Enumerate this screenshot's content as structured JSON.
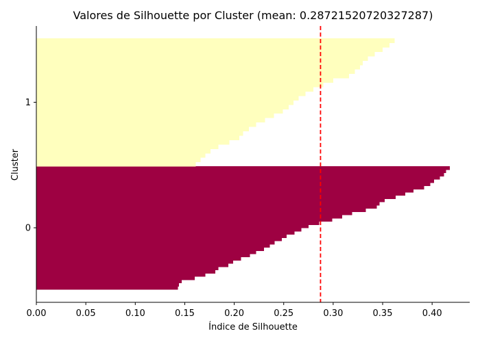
{
  "chart_data": {
    "type": "bar",
    "orientation": "horizontal",
    "title": "Valores de Silhouette por Cluster (mean: 0.28721520720327287)",
    "xlabel": "Índice de Silhouette",
    "ylabel": "Cluster",
    "xlim": [
      0.0,
      0.438
    ],
    "xticks": [
      "0.00",
      "0.05",
      "0.10",
      "0.15",
      "0.20",
      "0.25",
      "0.30",
      "0.35",
      "0.40"
    ],
    "yticks": [
      "0",
      "1"
    ],
    "mean_line": {
      "value": 0.28721520720327287,
      "color": "#ff0000",
      "style": "dashed"
    },
    "grid": false,
    "series": [
      {
        "name": "0",
        "color": "#9e0142",
        "sorted_values_bottom_to_top": [
          0.143,
          0.144,
          0.147,
          0.16,
          0.171,
          0.181,
          0.184,
          0.194,
          0.199,
          0.207,
          0.216,
          0.222,
          0.23,
          0.236,
          0.241,
          0.248,
          0.253,
          0.261,
          0.268,
          0.275,
          0.286,
          0.299,
          0.309,
          0.319,
          0.333,
          0.344,
          0.347,
          0.352,
          0.363,
          0.373,
          0.381,
          0.392,
          0.398,
          0.402,
          0.408,
          0.412,
          0.414,
          0.418
        ]
      },
      {
        "name": "1",
        "color": "#ffffbe",
        "sorted_values_bottom_to_top": [
          0.161,
          0.166,
          0.171,
          0.176,
          0.184,
          0.195,
          0.205,
          0.209,
          0.215,
          0.222,
          0.231,
          0.24,
          0.249,
          0.255,
          0.26,
          0.265,
          0.272,
          0.28,
          0.29,
          0.3,
          0.316,
          0.322,
          0.327,
          0.33,
          0.335,
          0.342,
          0.35,
          0.357,
          0.362
        ]
      }
    ]
  }
}
